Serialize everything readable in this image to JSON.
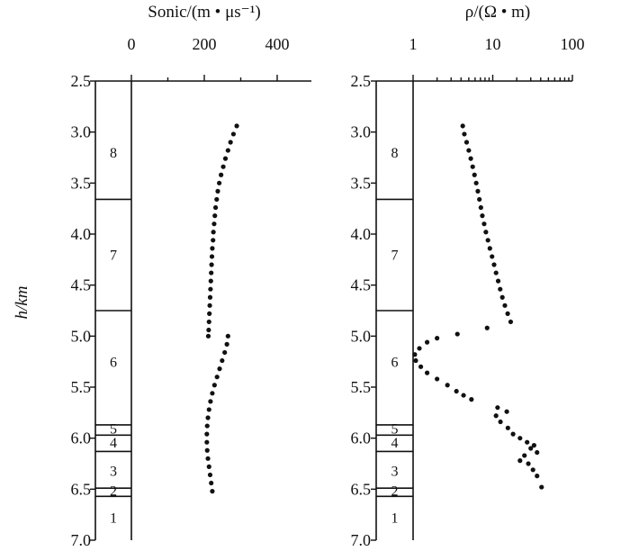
{
  "figure": {
    "ylabel": "h/km",
    "ylim": [
      2.5,
      7.0
    ],
    "yticks": [
      "2.5",
      "3.0",
      "3.5",
      "4.0",
      "4.5",
      "5.0",
      "5.5",
      "6.0",
      "6.5",
      "7.0"
    ]
  },
  "chart_data": [
    {
      "type": "scatter",
      "title": "Sonic/(m • μs⁻¹)",
      "xlabel": "Sonic/(m • μs⁻¹)",
      "ylabel": "h/km",
      "x_scale": "linear",
      "xlim": [
        0,
        500
      ],
      "xticks": [
        "0",
        "200",
        "400"
      ],
      "ylim": [
        2.5,
        7.0
      ],
      "y_inverted": true,
      "zone_boundaries_km": [
        3.66,
        4.75,
        5.87,
        5.97,
        6.13,
        6.49,
        6.57
      ],
      "zone_labels": [
        {
          "label": "8",
          "depth": 3.2
        },
        {
          "label": "7",
          "depth": 4.2
        },
        {
          "label": "6",
          "depth": 5.25
        },
        {
          "label": "5",
          "depth": 5.91
        },
        {
          "label": "4",
          "depth": 6.05
        },
        {
          "label": "3",
          "depth": 6.32
        },
        {
          "label": "2",
          "depth": 6.52
        },
        {
          "label": "1",
          "depth": 6.78
        }
      ],
      "points": [
        {
          "x": 289,
          "y": 2.94
        },
        {
          "x": 280,
          "y": 3.02
        },
        {
          "x": 272,
          "y": 3.1
        },
        {
          "x": 265,
          "y": 3.18
        },
        {
          "x": 258,
          "y": 3.26
        },
        {
          "x": 252,
          "y": 3.34
        },
        {
          "x": 246,
          "y": 3.42
        },
        {
          "x": 241,
          "y": 3.5
        },
        {
          "x": 237,
          "y": 3.58
        },
        {
          "x": 234,
          "y": 3.66
        },
        {
          "x": 231,
          "y": 3.74
        },
        {
          "x": 229,
          "y": 3.82
        },
        {
          "x": 227,
          "y": 3.9
        },
        {
          "x": 225,
          "y": 3.98
        },
        {
          "x": 224,
          "y": 4.06
        },
        {
          "x": 222,
          "y": 4.14
        },
        {
          "x": 221,
          "y": 4.22
        },
        {
          "x": 220,
          "y": 4.3
        },
        {
          "x": 219,
          "y": 4.38
        },
        {
          "x": 218,
          "y": 4.46
        },
        {
          "x": 217,
          "y": 4.54
        },
        {
          "x": 216,
          "y": 4.62
        },
        {
          "x": 215,
          "y": 4.7
        },
        {
          "x": 214,
          "y": 4.78
        },
        {
          "x": 213,
          "y": 4.86
        },
        {
          "x": 212,
          "y": 4.94
        },
        {
          "x": 211,
          "y": 5.0
        },
        {
          "x": 265,
          "y": 5.0
        },
        {
          "x": 262,
          "y": 5.08
        },
        {
          "x": 256,
          "y": 5.16
        },
        {
          "x": 249,
          "y": 5.24
        },
        {
          "x": 242,
          "y": 5.32
        },
        {
          "x": 235,
          "y": 5.4
        },
        {
          "x": 228,
          "y": 5.48
        },
        {
          "x": 222,
          "y": 5.56
        },
        {
          "x": 217,
          "y": 5.64
        },
        {
          "x": 213,
          "y": 5.72
        },
        {
          "x": 210,
          "y": 5.8
        },
        {
          "x": 208,
          "y": 5.88
        },
        {
          "x": 207,
          "y": 5.96
        },
        {
          "x": 207,
          "y": 6.04
        },
        {
          "x": 208,
          "y": 6.12
        },
        {
          "x": 210,
          "y": 6.2
        },
        {
          "x": 213,
          "y": 6.28
        },
        {
          "x": 216,
          "y": 6.36
        },
        {
          "x": 219,
          "y": 6.44
        },
        {
          "x": 222,
          "y": 6.52
        }
      ]
    },
    {
      "type": "scatter",
      "title": "ρ/(Ω • m)",
      "xlabel": "ρ/(Ω • m)",
      "ylabel": "h/km",
      "x_scale": "log",
      "xlim": [
        0.25,
        100
      ],
      "xticks": [
        "1",
        "10",
        "100"
      ],
      "ylim": [
        2.5,
        7.0
      ],
      "y_inverted": true,
      "zone_boundaries_km": [
        3.66,
        4.75,
        5.87,
        5.97,
        6.13,
        6.49,
        6.57
      ],
      "zone_labels": [
        {
          "label": "8",
          "depth": 3.2
        },
        {
          "label": "7",
          "depth": 4.2
        },
        {
          "label": "6",
          "depth": 5.25
        },
        {
          "label": "5",
          "depth": 5.91
        },
        {
          "label": "4",
          "depth": 6.05
        },
        {
          "label": "3",
          "depth": 6.32
        },
        {
          "label": "2",
          "depth": 6.52
        },
        {
          "label": "1",
          "depth": 6.78
        }
      ],
      "points": [
        {
          "x": 4.2,
          "y": 2.94
        },
        {
          "x": 4.4,
          "y": 3.02
        },
        {
          "x": 4.7,
          "y": 3.1
        },
        {
          "x": 5.0,
          "y": 3.18
        },
        {
          "x": 5.3,
          "y": 3.26
        },
        {
          "x": 5.6,
          "y": 3.34
        },
        {
          "x": 5.9,
          "y": 3.42
        },
        {
          "x": 6.2,
          "y": 3.5
        },
        {
          "x": 6.5,
          "y": 3.58
        },
        {
          "x": 6.8,
          "y": 3.66
        },
        {
          "x": 7.1,
          "y": 3.74
        },
        {
          "x": 7.4,
          "y": 3.82
        },
        {
          "x": 7.8,
          "y": 3.9
        },
        {
          "x": 8.2,
          "y": 3.98
        },
        {
          "x": 8.7,
          "y": 4.06
        },
        {
          "x": 9.2,
          "y": 4.14
        },
        {
          "x": 9.8,
          "y": 4.22
        },
        {
          "x": 10.4,
          "y": 4.3
        },
        {
          "x": 11.0,
          "y": 4.38
        },
        {
          "x": 11.7,
          "y": 4.46
        },
        {
          "x": 12.4,
          "y": 4.54
        },
        {
          "x": 13.2,
          "y": 4.62
        },
        {
          "x": 14.2,
          "y": 4.7
        },
        {
          "x": 15.4,
          "y": 4.78
        },
        {
          "x": 16.8,
          "y": 4.86
        },
        {
          "x": 8.5,
          "y": 4.92
        },
        {
          "x": 3.6,
          "y": 4.98
        },
        {
          "x": 2.0,
          "y": 5.02
        },
        {
          "x": 1.5,
          "y": 5.06
        },
        {
          "x": 1.2,
          "y": 5.12
        },
        {
          "x": 1.05,
          "y": 5.18
        },
        {
          "x": 1.08,
          "y": 5.24
        },
        {
          "x": 1.25,
          "y": 5.3
        },
        {
          "x": 1.5,
          "y": 5.36
        },
        {
          "x": 2.0,
          "y": 5.42
        },
        {
          "x": 2.7,
          "y": 5.48
        },
        {
          "x": 3.5,
          "y": 5.54
        },
        {
          "x": 4.3,
          "y": 5.58
        },
        {
          "x": 5.4,
          "y": 5.62
        },
        {
          "x": 11.5,
          "y": 5.7
        },
        {
          "x": 15.0,
          "y": 5.74
        },
        {
          "x": 11.0,
          "y": 5.78
        },
        {
          "x": 12.5,
          "y": 5.84
        },
        {
          "x": 15.5,
          "y": 5.9
        },
        {
          "x": 18.0,
          "y": 5.96
        },
        {
          "x": 22.0,
          "y": 6.0
        },
        {
          "x": 27.0,
          "y": 6.04
        },
        {
          "x": 33.0,
          "y": 6.07
        },
        {
          "x": 30.0,
          "y": 6.1
        },
        {
          "x": 36.0,
          "y": 6.14
        },
        {
          "x": 25.0,
          "y": 6.17
        },
        {
          "x": 22.0,
          "y": 6.22
        },
        {
          "x": 28.0,
          "y": 6.25
        },
        {
          "x": 32.0,
          "y": 6.31
        },
        {
          "x": 36.0,
          "y": 6.37
        },
        {
          "x": 41.0,
          "y": 6.48
        }
      ]
    }
  ]
}
